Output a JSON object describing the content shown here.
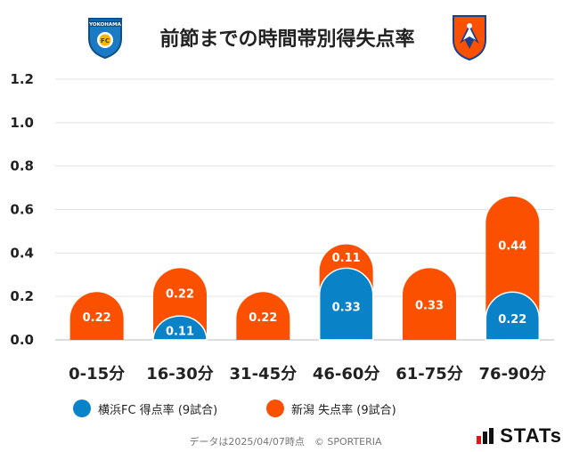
{
  "title": "前節までの時間帯別得失点率",
  "chart_data": {
    "type": "bar",
    "categories": [
      "0-15分",
      "16-30分",
      "31-45分",
      "46-60分",
      "61-75分",
      "76-90分"
    ],
    "series": [
      {
        "name": "横浜FC 得点率 (9試合)",
        "color": "#0a82c8",
        "values": [
          0,
          0.11,
          0,
          0.33,
          0,
          0.22
        ],
        "labels": [
          "",
          "0.11",
          "",
          "0.33",
          "",
          "0.22"
        ]
      },
      {
        "name": "新潟 失点率 (9試合)",
        "color": "#fb5000",
        "values": [
          0.22,
          0.22,
          0.22,
          0.11,
          0.33,
          0.44
        ],
        "labels": [
          "0.22",
          "0.22",
          "0.22",
          "0.11",
          "0.33",
          "0.44"
        ]
      }
    ],
    "ylim": [
      0,
      1.2
    ],
    "yticks": [
      "0.0",
      "0.2",
      "0.4",
      "0.6",
      "0.8",
      "1.0",
      "1.2"
    ],
    "grid": true,
    "legend_position": "bottom",
    "stacked": true
  },
  "legend": [
    {
      "label": "横浜FC 得点率 (9試合)",
      "color": "#0a82c8"
    },
    {
      "label": "新潟 失点率 (9試合)",
      "color": "#fb5000"
    }
  ],
  "footer": "データは2025/04/07時点　© SPORTERIA",
  "brand": "STATs",
  "logos": {
    "left_text": "YOKOHAMA",
    "left_badge": "FC"
  }
}
